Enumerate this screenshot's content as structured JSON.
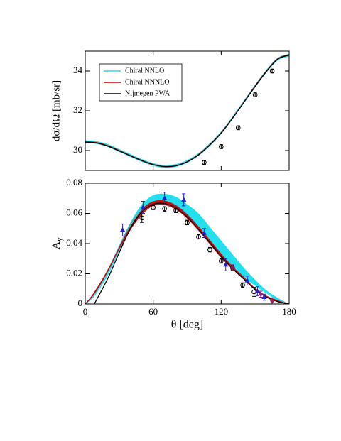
{
  "chart_data": [
    {
      "type": "line",
      "ylabel": "dσ/dΩ  [mb/sr]",
      "x": [
        0,
        10,
        20,
        30,
        40,
        50,
        60,
        70,
        80,
        90,
        100,
        110,
        120,
        130,
        140,
        150,
        160,
        170,
        180
      ],
      "xlim": [
        0,
        180
      ],
      "xticks": [
        0,
        60,
        120,
        180
      ],
      "show_xtick_labels": false,
      "ylim": [
        29,
        35
      ],
      "yticks": [
        30,
        32,
        34
      ],
      "legend": "upper left",
      "series": [
        {
          "name": "Chiral NNLO",
          "color": "#22e0ee",
          "values": [
            30.45,
            30.4,
            30.25,
            30.0,
            29.75,
            29.5,
            29.3,
            29.2,
            29.25,
            29.45,
            29.8,
            30.3,
            30.9,
            31.65,
            32.45,
            33.25,
            34.0,
            34.6,
            34.8
          ],
          "lower": [
            30.38,
            30.33,
            30.18,
            29.93,
            29.68,
            29.43,
            29.23,
            29.13,
            29.18,
            29.38,
            29.73,
            30.23,
            30.83,
            31.58,
            32.38,
            33.18,
            33.93,
            34.53,
            34.73
          ],
          "upper": [
            30.52,
            30.47,
            30.32,
            30.07,
            29.82,
            29.57,
            29.37,
            29.27,
            29.32,
            29.52,
            29.87,
            30.37,
            30.97,
            31.72,
            32.52,
            33.32,
            34.07,
            34.67,
            34.87
          ]
        },
        {
          "name": "Chiral NNNLO",
          "color": "#cc0000",
          "values": [
            30.45,
            30.4,
            30.24,
            30.0,
            29.74,
            29.5,
            29.3,
            29.2,
            29.24,
            29.44,
            29.8,
            30.3,
            30.9,
            31.63,
            32.43,
            33.25,
            34.0,
            34.62,
            34.82
          ]
        },
        {
          "name": "Nijmegen PWA",
          "color": "#000000",
          "values": [
            30.42,
            30.38,
            30.22,
            29.98,
            29.73,
            29.49,
            29.29,
            29.19,
            29.23,
            29.43,
            29.78,
            30.28,
            30.88,
            31.62,
            32.42,
            33.22,
            33.98,
            34.6,
            34.8
          ]
        }
      ],
      "points": [
        {
          "marker": "circle",
          "color": "#000000",
          "x": [
            105,
            120,
            135,
            150,
            165
          ],
          "values": [
            29.4,
            30.2,
            31.15,
            32.8,
            34.0
          ],
          "errors": [
            0.1,
            0.1,
            0.1,
            0.1,
            0.1
          ]
        }
      ]
    },
    {
      "type": "line",
      "xlabel": "θ  [deg]",
      "ylabel": [
        "A",
        "y"
      ],
      "x": [
        0,
        8,
        20,
        30,
        40,
        50,
        60,
        70,
        80,
        90,
        100,
        110,
        120,
        130,
        140,
        150,
        160,
        170,
        180
      ],
      "xlim": [
        0,
        180
      ],
      "xticks": [
        0,
        60,
        120,
        180
      ],
      "show_xtick_labels": true,
      "ylim": [
        0,
        0.08
      ],
      "yticks": [
        0,
        0.02,
        0.04,
        0.06,
        0.08
      ],
      "series": [
        {
          "name": "Chiral NNLO",
          "color": "#22e0ee",
          "values": [
            0,
            0.006,
            0.021,
            0.037,
            0.052,
            0.063,
            0.069,
            0.07,
            0.068,
            0.062,
            0.055,
            0.046,
            0.037,
            0.029,
            0.021,
            0.014,
            0.008,
            0.003,
            0
          ],
          "lower": [
            0,
            0.005,
            0.019,
            0.035,
            0.05,
            0.06,
            0.066,
            0.066,
            0.064,
            0.058,
            0.05,
            0.041,
            0.032,
            0.025,
            0.018,
            0.012,
            0.007,
            0.002,
            0
          ],
          "upper": [
            0,
            0.007,
            0.023,
            0.039,
            0.054,
            0.066,
            0.072,
            0.073,
            0.071,
            0.066,
            0.06,
            0.051,
            0.042,
            0.033,
            0.024,
            0.016,
            0.009,
            0.004,
            0
          ]
        },
        {
          "name": "Chiral NNNLO",
          "color": "#cc0000",
          "values": [
            0,
            0.007,
            0.022,
            0.037,
            0.051,
            0.061,
            0.0665,
            0.067,
            0.064,
            0.058,
            0.05,
            0.041,
            0.032,
            0.024,
            0.017,
            0.01,
            0.005,
            0.002,
            0
          ],
          "lower": [
            0,
            0.006,
            0.021,
            0.036,
            0.049,
            0.059,
            0.065,
            0.0655,
            0.0625,
            0.0565,
            0.0485,
            0.0395,
            0.0305,
            0.023,
            0.016,
            0.0095,
            0.0045,
            0.0015,
            0
          ],
          "upper": [
            0,
            0.008,
            0.023,
            0.038,
            0.053,
            0.063,
            0.068,
            0.0685,
            0.0655,
            0.0595,
            0.0515,
            0.0425,
            0.0335,
            0.025,
            0.018,
            0.0105,
            0.0055,
            0.0025,
            0
          ]
        },
        {
          "name": "Nijmegen PWA",
          "color": "#000000",
          "values": [
            null,
            0,
            0.017,
            0.034,
            0.05,
            0.061,
            0.066,
            0.0665,
            0.0635,
            0.0575,
            0.0495,
            0.0405,
            0.0315,
            0.0235,
            0.0165,
            0.0095,
            0.0045,
            0.0015,
            0
          ]
        }
      ],
      "points": [
        {
          "marker": "circle",
          "color": "#000000",
          "x": [
            50,
            60,
            70,
            80,
            90,
            100,
            110,
            120,
            130,
            139,
            149
          ],
          "values": [
            0.057,
            0.064,
            0.063,
            0.062,
            0.054,
            0.0445,
            0.036,
            0.0285,
            0.024,
            0.0125,
            0.008
          ],
          "errors": [
            0.003,
            0.0015,
            0.0015,
            0.0015,
            0.0015,
            0.0015,
            0.0015,
            0.0015,
            0.0015,
            0.0015,
            0.003
          ]
        },
        {
          "marker": "triangle",
          "color": "#2222cc",
          "x": [
            33,
            51,
            70,
            87,
            105,
            124,
            143,
            152,
            158
          ],
          "values": [
            0.049,
            0.064,
            0.07,
            0.069,
            0.047,
            0.026,
            0.0155,
            0.0085,
            0.0045
          ],
          "errors": [
            0.004,
            0.004,
            0.004,
            0.004,
            0.003,
            0.004,
            0.003,
            0.003,
            0.002
          ]
        },
        {
          "marker": "diamond",
          "color": "#992266",
          "x": [
            130,
            155,
            165
          ],
          "values": [
            0.024,
            0.0065,
            0.002
          ],
          "errors": [
            0.002,
            0.002,
            0.002
          ]
        }
      ]
    }
  ]
}
